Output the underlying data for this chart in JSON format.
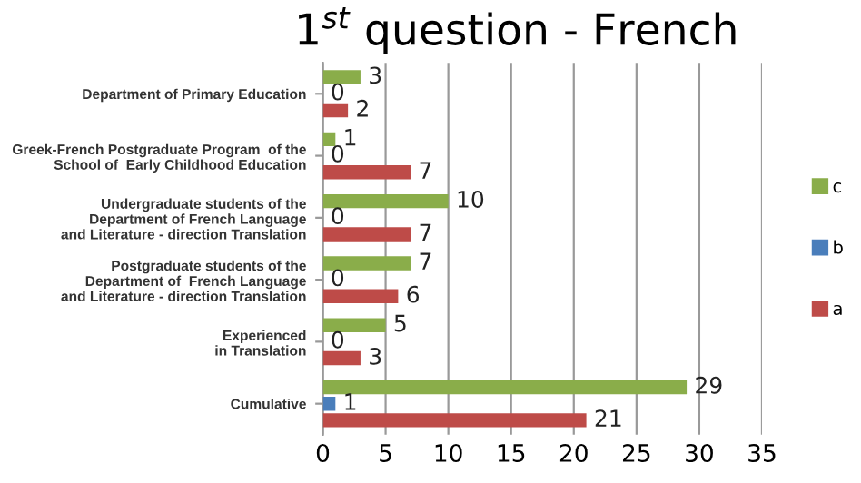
{
  "chart_data": {
    "type": "bar",
    "orientation": "horizontal",
    "title": "1$^{st}$ question - French",
    "categories": [
      "Department of Primary Education",
      "Greek-French Postgraduate Program  of the\nSchool of  Early Childhood Education",
      "Undergraduate students of the\nDepartment of French Language\nand Literature - direction Translation",
      "Postgraduate students of the\nDepartment of  French Language\nand Literature - direction Translation",
      "Experienced\nin Translation",
      "Cumulative"
    ],
    "series": [
      {
        "name": "c",
        "color": "#8aad4a",
        "values": [
          3,
          1,
          10,
          7,
          5,
          29
        ]
      },
      {
        "name": "b",
        "color": "#4a7ebb",
        "values": [
          0,
          0,
          0,
          0,
          0,
          1
        ]
      },
      {
        "name": "a",
        "color": "#be4b48",
        "values": [
          2,
          7,
          7,
          6,
          3,
          21
        ]
      }
    ],
    "xlim": [
      0,
      35
    ],
    "xticks": [
      0,
      5,
      10,
      15,
      20,
      25,
      30,
      35
    ],
    "grid": "x",
    "legend": "right",
    "data_labels": true
  }
}
